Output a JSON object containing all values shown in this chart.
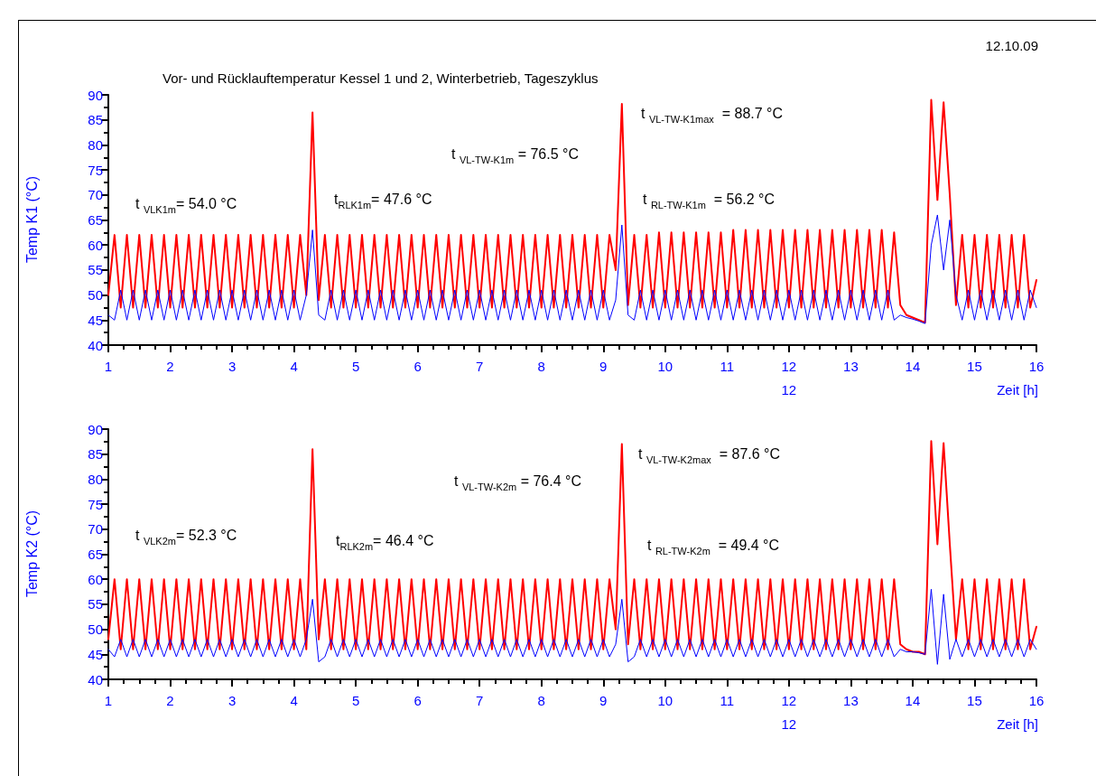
{
  "chart_data": [
    {
      "type": "line",
      "title": "Vor- und Rücklauftemperatur Kessel 1 und 2, Winterbetrieb, Tageszyklus",
      "xlabel": "Zeit [h]",
      "ylabel": "Temp K1 (°C)",
      "marker": "none",
      "annotations": [
        "t $_{VLK1m}$= 54.0 °C",
        "t$_{RLK1m}$= 47.6 °C",
        "t $_{VL-TW-K1m}$ = 76.5 °C",
        "t $_{VL-TW-K1max}$  = 88.7 °C",
        "t $_{RL-TW-K1m}$  = 56.2 °C",
        "12.10.09"
      ],
      "xlim": [
        1,
        16
      ],
      "ylim": [
        40,
        90
      ],
      "xticks": [
        1,
        {
          "value": 1.25,
          "label": null
        },
        {
          "value": 1.5,
          "label": null
        },
        {
          "value": 1.75,
          "label": null
        },
        2,
        {
          "value": 2.25,
          "label": null
        },
        {
          "value": 2.5,
          "label": null
        },
        {
          "value": 2.75,
          "label": null
        },
        3,
        {
          "value": 3.25,
          "label": null
        },
        {
          "value": 3.5,
          "label": null
        },
        {
          "value": 3.75,
          "label": null
        },
        4,
        {
          "value": 4.25,
          "label": null
        },
        {
          "value": 4.5,
          "label": null
        },
        {
          "value": 4.75,
          "label": null
        },
        5,
        {
          "value": 5.25,
          "label": null
        },
        {
          "value": 5.5,
          "label": null
        },
        {
          "value": 5.75,
          "label": null
        },
        6,
        {
          "value": 6.25,
          "label": null
        },
        {
          "value": 6.5,
          "label": null
        },
        {
          "value": 6.75,
          "label": null
        },
        7,
        {
          "value": 7.25,
          "label": null
        },
        {
          "value": 7.5,
          "label": null
        },
        {
          "value": 7.75,
          "label": null
        },
        8,
        {
          "value": 8.25,
          "label": null
        },
        {
          "value": 8.5,
          "label": null
        },
        {
          "value": 8.75,
          "label": null
        },
        9,
        {
          "value": 9.25,
          "label": null
        },
        {
          "value": 9.5,
          "label": null
        },
        {
          "value": 9.75,
          "label": null
        },
        10,
        {
          "value": 10.25,
          "label": null
        },
        {
          "value": 10.5,
          "label": null
        },
        {
          "value": 10.75,
          "label": null
        },
        11,
        {
          "value": 11.25,
          "label": null
        },
        {
          "value": 11.5,
          "label": null
        },
        {
          "value": 11.75,
          "label": null
        },
        {
          "value": 12,
          "label": "12\n12"
        },
        {
          "value": 12.25,
          "label": null
        },
        {
          "value": 12.5,
          "label": null
        },
        {
          "value": 12.75,
          "label": null
        },
        13,
        {
          "value": 13.25,
          "label": null
        },
        {
          "value": 13.5,
          "label": null
        },
        {
          "value": 13.75,
          "label": null
        },
        14,
        {
          "value": 14.25,
          "label": null
        },
        {
          "value": 14.5,
          "label": null
        },
        {
          "value": 14.75,
          "label": null
        },
        15,
        {
          "value": 15.25,
          "label": null
        },
        {
          "value": 15.5,
          "label": null
        },
        {
          "value": 15.75,
          "label": null
        },
        16
      ],
      "yticks": [
        40,
        {
          "value": 42.5,
          "label": null
        },
        45,
        {
          "value": 47.5,
          "label": null
        },
        50,
        {
          "value": 52.5,
          "label": null
        },
        55,
        {
          "value": 57.5,
          "label": null
        },
        60,
        {
          "value": 62.5,
          "label": null
        },
        65,
        {
          "value": 67.5,
          "label": null
        },
        70,
        {
          "value": 72.5,
          "label": null
        },
        75,
        {
          "value": 77.5,
          "label": null
        },
        80,
        {
          "value": 82.5,
          "label": null
        },
        85,
        {
          "value": 87.5,
          "label": null
        },
        90
      ],
      "x": [
        1,
        1.1,
        1.2,
        1.3,
        1.4,
        1.5,
        1.6,
        1.7,
        1.8,
        1.9,
        2,
        2.1,
        2.2,
        2.3,
        2.4,
        2.5,
        2.6,
        2.7,
        2.8,
        2.9,
        3,
        3.1,
        3.2,
        3.3,
        3.4,
        3.5,
        3.6,
        3.7,
        3.8,
        3.9,
        4,
        4.1,
        4.2,
        4.3,
        4.4,
        4.5,
        4.6,
        4.7,
        4.8,
        4.9,
        5,
        5.1,
        5.2,
        5.3,
        5.4,
        5.5,
        5.6,
        5.7,
        5.8,
        5.9,
        6,
        6.1,
        6.2,
        6.3,
        6.4,
        6.5,
        6.6,
        6.7,
        6.8,
        6.9,
        7,
        7.1,
        7.2,
        7.3,
        7.4,
        7.5,
        7.6,
        7.7,
        7.8,
        7.9,
        8,
        8.1,
        8.2,
        8.3,
        8.4,
        8.5,
        8.6,
        8.7,
        8.8,
        8.9,
        9,
        9.1,
        9.2,
        9.3,
        9.4,
        9.5,
        9.6,
        9.7,
        9.8,
        9.9,
        10,
        10.1,
        10.2,
        10.3,
        10.4,
        10.5,
        10.6,
        10.7,
        10.8,
        10.9,
        11,
        11.1,
        11.2,
        11.3,
        11.4,
        11.5,
        11.6,
        11.7,
        11.8,
        11.9,
        12,
        12.1,
        12.2,
        12.3,
        12.4,
        12.5,
        12.6,
        12.7,
        12.8,
        12.9,
        13,
        13.1,
        13.2,
        13.3,
        13.4,
        13.5,
        13.6,
        13.7,
        13.8,
        13.9,
        14,
        14.1,
        14.2,
        14.3,
        14.4,
        14.5,
        14.6,
        14.7,
        14.8,
        14.9,
        15,
        15.1,
        15.2,
        15.3,
        15.4,
        15.5,
        15.6,
        15.7,
        15.8,
        15.9,
        16
      ],
      "series": [
        {
          "color": "#ff0000",
          "values": [
            50,
            62,
            47.5,
            62,
            47.5,
            62,
            47.5,
            62,
            47.5,
            62,
            47.5,
            62,
            47.5,
            62,
            47.5,
            62,
            47.5,
            62,
            47.5,
            62,
            47.5,
            62,
            47.5,
            62,
            47.5,
            62,
            47.5,
            62,
            47.5,
            62,
            47.5,
            62,
            50,
            86.5,
            49,
            62,
            47.5,
            62,
            47.5,
            62,
            47.5,
            62,
            47.5,
            62,
            47.5,
            62,
            47.5,
            62,
            47.5,
            62,
            47.5,
            62,
            47.5,
            62,
            47.5,
            62,
            47.5,
            62,
            47.5,
            62,
            47.5,
            62,
            47.5,
            62,
            47.5,
            62,
            47.5,
            62,
            47.5,
            62,
            47.5,
            62,
            47.5,
            62,
            47.5,
            62,
            47.5,
            62,
            47.5,
            62,
            47.5,
            62,
            55,
            88.2,
            48,
            62,
            47.5,
            62,
            47.5,
            62.5,
            47.5,
            62.5,
            47.5,
            62.5,
            47.5,
            62.5,
            47.5,
            62.5,
            47.5,
            62.5,
            47.5,
            63,
            47.5,
            63,
            47.5,
            63,
            47.5,
            63,
            47.5,
            63,
            47.5,
            63,
            47.5,
            63,
            47.5,
            63,
            47.5,
            63,
            47.5,
            63,
            47.5,
            63,
            47.5,
            63,
            47.5,
            63,
            47.5,
            62.5,
            48,
            46,
            45.5,
            45,
            44.5,
            89,
            69,
            88.5,
            70,
            48,
            62,
            47.5,
            62,
            47.5,
            62,
            47.5,
            62,
            47.5,
            62,
            47.5,
            62,
            47.5,
            53
          ]
        },
        {
          "color": "#0000ff",
          "values": [
            46,
            45,
            51,
            45,
            51,
            45,
            51,
            45,
            51,
            45,
            51,
            45,
            51,
            45,
            51,
            45,
            51,
            45,
            51,
            45,
            51,
            45,
            51,
            45,
            51,
            45,
            51,
            45,
            51,
            45,
            51,
            45,
            50,
            63,
            46,
            45,
            51,
            45,
            51,
            45,
            51,
            45,
            51,
            45,
            51,
            45,
            51,
            45,
            51,
            45,
            51,
            45,
            51,
            45,
            51,
            45,
            51,
            45,
            51,
            45,
            51,
            45,
            51,
            45,
            51,
            45,
            51,
            45,
            51,
            45,
            51,
            45,
            51,
            45,
            51,
            45,
            51,
            45,
            51,
            45,
            51,
            45,
            49,
            64,
            46,
            45,
            51,
            45,
            51,
            45,
            51,
            45,
            51,
            45,
            51,
            45,
            51,
            45,
            51,
            45,
            51,
            45,
            51,
            45,
            51,
            45,
            51,
            45,
            51,
            45,
            51,
            45,
            51,
            45,
            51,
            45,
            51,
            45,
            51,
            45,
            51,
            45,
            51,
            45,
            51,
            45,
            51,
            45,
            46,
            45.5,
            45.2,
            44.8,
            44.3,
            60,
            66,
            55,
            65,
            50,
            45,
            51,
            45,
            51,
            45,
            51,
            45,
            51,
            45,
            51,
            45,
            51,
            47.5
          ]
        }
      ]
    },
    {
      "type": "line",
      "xlabel": "Zeit [h]",
      "ylabel": "Temp K2 (°C)",
      "marker": "none",
      "annotations": [
        "t $_{VLK2m}$= 52.3 °C",
        "t$_{RLK2m}$= 46.4 °C",
        "t $_{VL-TW-K2m}$ = 76.4 °C",
        "t $_{VL-TW-K2max}$  = 87.6 °C",
        "t $_{RL-TW-K2m}$  = 49.4 °C"
      ],
      "xlim": [
        1,
        16
      ],
      "ylim": [
        40,
        90
      ],
      "xticks": [
        1,
        {
          "value": 1.25,
          "label": null
        },
        {
          "value": 1.5,
          "label": null
        },
        {
          "value": 1.75,
          "label": null
        },
        2,
        {
          "value": 2.25,
          "label": null
        },
        {
          "value": 2.5,
          "label": null
        },
        {
          "value": 2.75,
          "label": null
        },
        3,
        {
          "value": 3.25,
          "label": null
        },
        {
          "value": 3.5,
          "label": null
        },
        {
          "value": 3.75,
          "label": null
        },
        4,
        {
          "value": 4.25,
          "label": null
        },
        {
          "value": 4.5,
          "label": null
        },
        {
          "value": 4.75,
          "label": null
        },
        5,
        {
          "value": 5.25,
          "label": null
        },
        {
          "value": 5.5,
          "label": null
        },
        {
          "value": 5.75,
          "label": null
        },
        6,
        {
          "value": 6.25,
          "label": null
        },
        {
          "value": 6.5,
          "label": null
        },
        {
          "value": 6.75,
          "label": null
        },
        7,
        {
          "value": 7.25,
          "label": null
        },
        {
          "value": 7.5,
          "label": null
        },
        {
          "value": 7.75,
          "label": null
        },
        8,
        {
          "value": 8.25,
          "label": null
        },
        {
          "value": 8.5,
          "label": null
        },
        {
          "value": 8.75,
          "label": null
        },
        9,
        {
          "value": 9.25,
          "label": null
        },
        {
          "value": 9.5,
          "label": null
        },
        {
          "value": 9.75,
          "label": null
        },
        10,
        {
          "value": 10.25,
          "label": null
        },
        {
          "value": 10.5,
          "label": null
        },
        {
          "value": 10.75,
          "label": null
        },
        11,
        {
          "value": 11.25,
          "label": null
        },
        {
          "value": 11.5,
          "label": null
        },
        {
          "value": 11.75,
          "label": null
        },
        {
          "value": 12,
          "label": "12\n12"
        },
        {
          "value": 12.25,
          "label": null
        },
        {
          "value": 12.5,
          "label": null
        },
        {
          "value": 12.75,
          "label": null
        },
        13,
        {
          "value": 13.25,
          "label": null
        },
        {
          "value": 13.5,
          "label": null
        },
        {
          "value": 13.75,
          "label": null
        },
        14,
        {
          "value": 14.25,
          "label": null
        },
        {
          "value": 14.5,
          "label": null
        },
        {
          "value": 14.75,
          "label": null
        },
        15,
        {
          "value": 15.25,
          "label": null
        },
        {
          "value": 15.5,
          "label": null
        },
        {
          "value": 15.75,
          "label": null
        },
        16
      ],
      "yticks": [
        40,
        {
          "value": 42.5,
          "label": null
        },
        45,
        {
          "value": 47.5,
          "label": null
        },
        50,
        {
          "value": 52.5,
          "label": null
        },
        55,
        {
          "value": 57.5,
          "label": null
        },
        60,
        {
          "value": 62.5,
          "label": null
        },
        65,
        {
          "value": 67.5,
          "label": null
        },
        70,
        {
          "value": 72.5,
          "label": null
        },
        75,
        {
          "value": 77.5,
          "label": null
        },
        80,
        {
          "value": 82.5,
          "label": null
        },
        85,
        {
          "value": 87.5,
          "label": null
        },
        90
      ],
      "x": [
        1,
        1.1,
        1.2,
        1.3,
        1.4,
        1.5,
        1.6,
        1.7,
        1.8,
        1.9,
        2,
        2.1,
        2.2,
        2.3,
        2.4,
        2.5,
        2.6,
        2.7,
        2.8,
        2.9,
        3,
        3.1,
        3.2,
        3.3,
        3.4,
        3.5,
        3.6,
        3.7,
        3.8,
        3.9,
        4,
        4.1,
        4.2,
        4.3,
        4.4,
        4.5,
        4.6,
        4.7,
        4.8,
        4.9,
        5,
        5.1,
        5.2,
        5.3,
        5.4,
        5.5,
        5.6,
        5.7,
        5.8,
        5.9,
        6,
        6.1,
        6.2,
        6.3,
        6.4,
        6.5,
        6.6,
        6.7,
        6.8,
        6.9,
        7,
        7.1,
        7.2,
        7.3,
        7.4,
        7.5,
        7.6,
        7.7,
        7.8,
        7.9,
        8,
        8.1,
        8.2,
        8.3,
        8.4,
        8.5,
        8.6,
        8.7,
        8.8,
        8.9,
        9,
        9.1,
        9.2,
        9.3,
        9.4,
        9.5,
        9.6,
        9.7,
        9.8,
        9.9,
        10,
        10.1,
        10.2,
        10.3,
        10.4,
        10.5,
        10.6,
        10.7,
        10.8,
        10.9,
        11,
        11.1,
        11.2,
        11.3,
        11.4,
        11.5,
        11.6,
        11.7,
        11.8,
        11.9,
        12,
        12.1,
        12.2,
        12.3,
        12.4,
        12.5,
        12.6,
        12.7,
        12.8,
        12.9,
        13,
        13.1,
        13.2,
        13.3,
        13.4,
        13.5,
        13.6,
        13.7,
        13.8,
        13.9,
        14,
        14.1,
        14.2,
        14.3,
        14.4,
        14.5,
        14.6,
        14.7,
        14.8,
        14.9,
        15,
        15.1,
        15.2,
        15.3,
        15.4,
        15.5,
        15.6,
        15.7,
        15.8,
        15.9,
        16
      ],
      "series": [
        {
          "color": "#ff0000",
          "values": [
            48,
            60,
            46,
            60,
            46,
            60,
            46,
            60,
            46,
            60,
            46,
            60,
            46,
            60,
            46,
            60,
            46,
            60,
            46,
            60,
            46,
            60,
            46,
            60,
            46,
            60,
            46,
            60,
            46,
            60,
            46,
            60,
            46,
            86,
            48,
            60,
            46,
            60,
            46,
            60,
            46,
            60,
            46,
            60,
            46,
            60,
            46,
            60,
            46,
            60,
            46,
            60,
            46,
            60,
            46,
            60,
            46,
            60,
            46,
            60,
            46,
            60,
            46,
            60,
            46,
            60,
            46,
            60,
            46,
            60,
            46,
            60,
            46,
            60,
            46,
            60,
            46,
            60,
            46,
            60,
            46,
            60,
            50,
            87,
            47,
            60,
            46,
            60,
            46,
            60,
            46,
            60,
            46,
            60,
            46,
            60,
            46,
            60,
            46,
            60,
            46,
            60,
            46,
            60,
            46,
            60,
            46,
            60,
            46,
            60,
            46,
            60,
            46,
            60,
            46,
            60,
            46,
            60,
            46,
            60,
            46,
            60,
            46,
            60,
            46,
            60,
            46,
            60,
            47,
            46,
            45.5,
            45.5,
            45,
            87.6,
            67,
            87.2,
            67,
            48,
            60,
            46,
            60,
            46,
            60,
            46,
            60,
            46,
            60,
            46,
            60,
            46,
            50.5
          ]
        },
        {
          "color": "#0000ff",
          "values": [
            46,
            44.5,
            48,
            44.5,
            48,
            44.5,
            48,
            44.5,
            48,
            44.5,
            48,
            44.5,
            48,
            44.5,
            48,
            44.5,
            48,
            44.5,
            48,
            44.5,
            48,
            44.5,
            48,
            44.5,
            48,
            44.5,
            48,
            44.5,
            48,
            44.5,
            48,
            44.5,
            48,
            56,
            43.5,
            44.5,
            48,
            44.5,
            48,
            44.5,
            48,
            44.5,
            48,
            44.5,
            48,
            44.5,
            48,
            44.5,
            48,
            44.5,
            48,
            44.5,
            48,
            44.5,
            48,
            44.5,
            48,
            44.5,
            48,
            44.5,
            48,
            44.5,
            48,
            44.5,
            48,
            44.5,
            48,
            44.5,
            48,
            44.5,
            48,
            44.5,
            48,
            44.5,
            48,
            44.5,
            48,
            44.5,
            48,
            44.5,
            48,
            44.5,
            47,
            56,
            43.5,
            44.5,
            48,
            44.5,
            48,
            44.5,
            48,
            44.5,
            48,
            44.5,
            48,
            44.5,
            48,
            44.5,
            48,
            44.5,
            48,
            44.5,
            48,
            44.5,
            48,
            44.5,
            48,
            44.5,
            48,
            44.5,
            48,
            44.5,
            48,
            44.5,
            48,
            44.5,
            48,
            44.5,
            48,
            44.5,
            48,
            44.5,
            48,
            44.5,
            48,
            44.5,
            48,
            44.5,
            46,
            45.5,
            45.5,
            45.3,
            45,
            58,
            43,
            57,
            44,
            48,
            44.5,
            48,
            44.5,
            48,
            44.5,
            48,
            44.5,
            48,
            44.5,
            48,
            44.5,
            48,
            46
          ]
        }
      ]
    }
  ]
}
